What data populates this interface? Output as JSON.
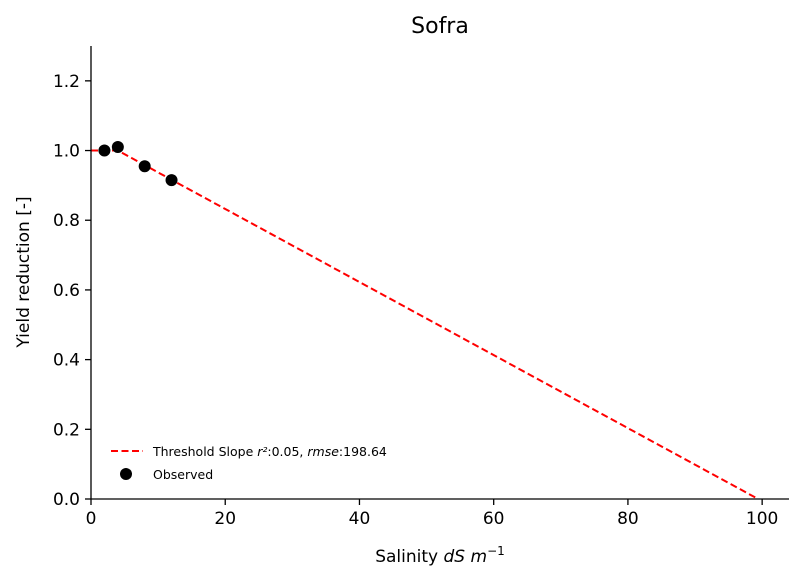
{
  "chart_data": {
    "type": "scatter+line",
    "title": "Sofra",
    "xlabel": {
      "prefix": "Salinity ",
      "var": "dS",
      "unit": "m",
      "exp": "−1"
    },
    "ylabel": "Yield reduction [-]",
    "xlim": [
      0,
      104
    ],
    "ylim": [
      0,
      1.3
    ],
    "xticks": [
      0,
      20,
      40,
      60,
      80,
      100
    ],
    "yticks": [
      0.0,
      0.2,
      0.4,
      0.6,
      0.8,
      1.0,
      1.2
    ],
    "xtick_labels": [
      "0",
      "20",
      "40",
      "60",
      "80",
      "100"
    ],
    "ytick_labels": [
      "0.0",
      "0.2",
      "0.4",
      "0.6",
      "0.8",
      "1.0",
      "1.2"
    ],
    "grid": false,
    "legend_position": "lower-left",
    "series": [
      {
        "name": "Threshold Slope",
        "type": "line",
        "style": "dashed",
        "color": "#ff0000",
        "x": [
          0,
          4,
          99.4
        ],
        "y": [
          1.0,
          1.0,
          0.0
        ],
        "legend": {
          "text": "Threshold Slope ",
          "r2_symbol": "r²",
          "r2_value": ":0.05, ",
          "rmse_symbol": "rmse",
          "rmse_value": ":198.64"
        }
      },
      {
        "name": "Observed",
        "type": "scatter",
        "color": "#000000",
        "x": [
          2,
          4,
          8,
          12
        ],
        "y": [
          1.0,
          1.01,
          0.955,
          0.915
        ],
        "legend": {
          "text": "Observed"
        }
      }
    ]
  }
}
